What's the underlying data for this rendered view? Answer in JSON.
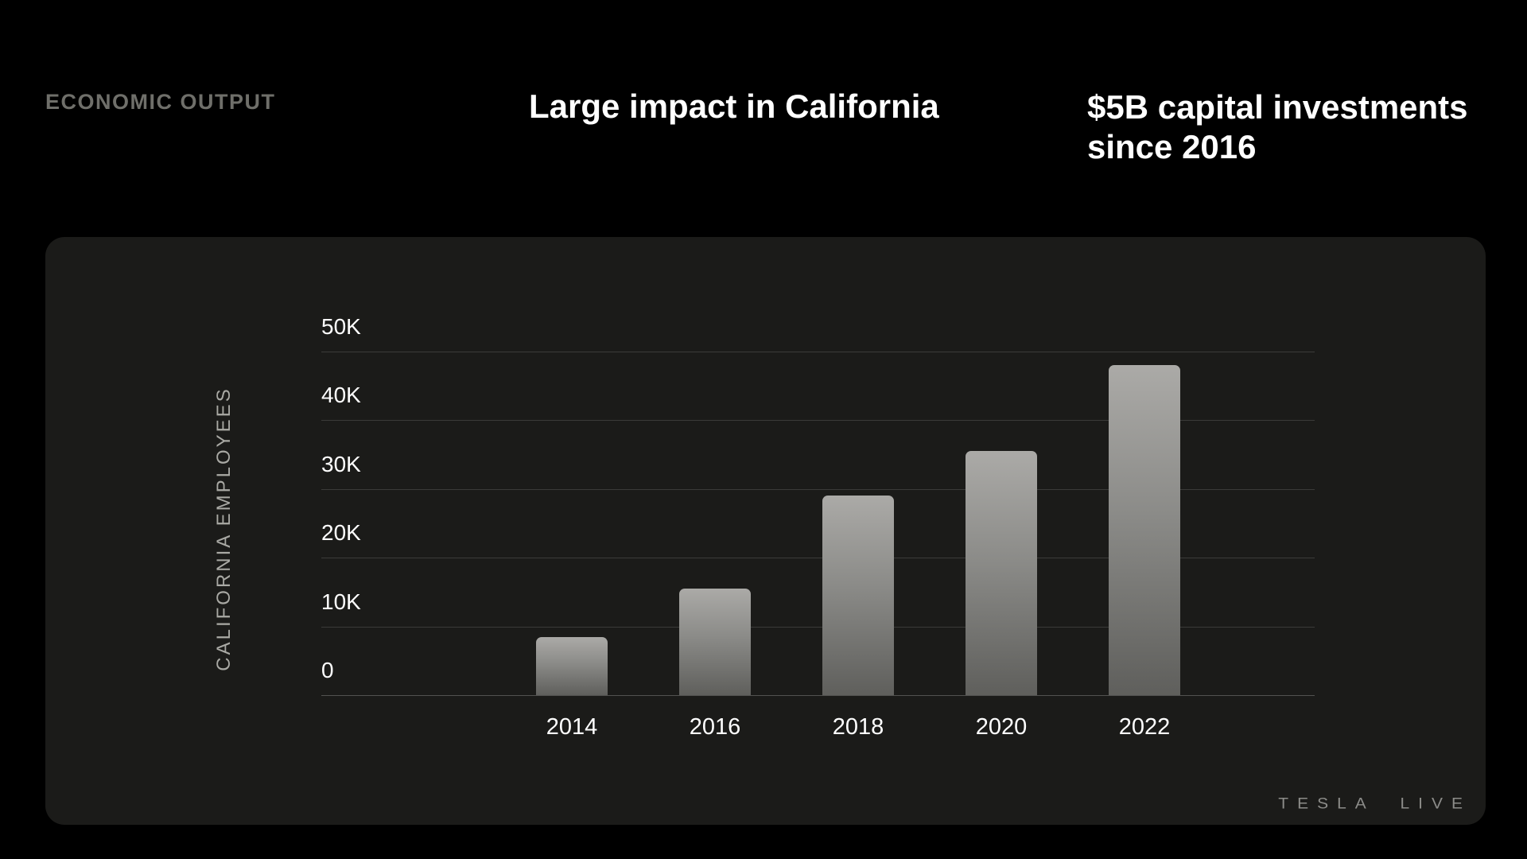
{
  "header": {
    "kicker": "ECONOMIC OUTPUT",
    "title": "Large impact in California",
    "subtitle_line1": "$5B capital investments",
    "subtitle_line2": "since 2016"
  },
  "panel": {
    "background": "#1b1b19"
  },
  "chart_data": {
    "type": "bar",
    "title": "Large impact in California",
    "xlabel": "",
    "ylabel": "CALIFORNIA EMPLOYEES",
    "categories": [
      "2014",
      "2016",
      "2018",
      "2020",
      "2022"
    ],
    "values": [
      8500,
      15500,
      29000,
      35500,
      48000
    ],
    "series_name": "California employees",
    "ylim": [
      0,
      50000
    ],
    "ytick_interval": 10000,
    "yticks": [
      "0",
      "10K",
      "20K",
      "30K",
      "40K",
      "50K"
    ],
    "grid": "horizontal",
    "legend": "none",
    "colors": {
      "bar_gradient_top": "#abaaa7",
      "bar_gradient_bottom": "#5f5f5c",
      "gridline": "#3b3b39",
      "baseline": "#525250",
      "tick_text": "#ffffff",
      "axis_title_text": "#a9a9a4",
      "panel_background": "#1b1b19",
      "page_background": "#000000"
    }
  },
  "footer": {
    "logo_text": "TESLA LIVE"
  }
}
